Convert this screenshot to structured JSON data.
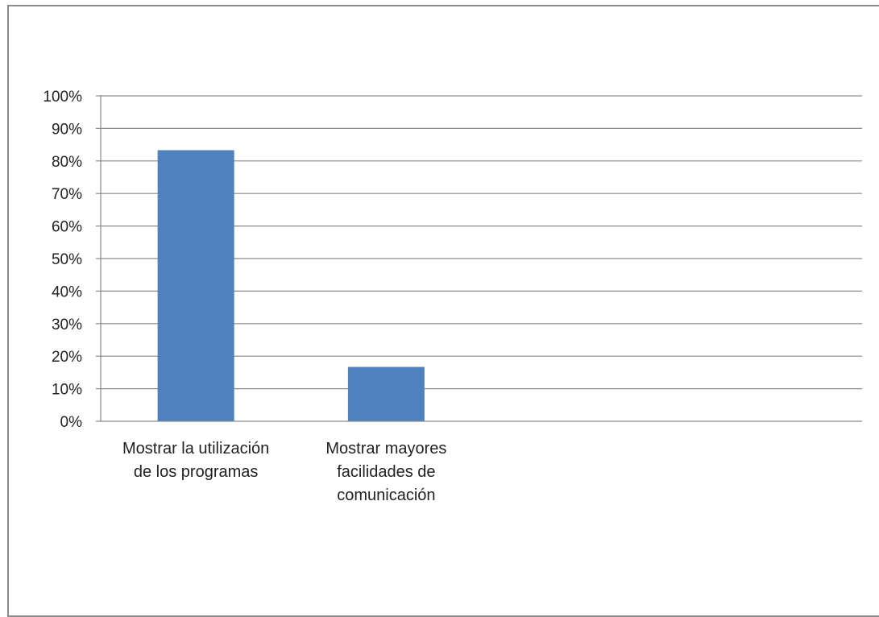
{
  "chart_data": {
    "type": "bar",
    "title": "",
    "xlabel": "",
    "ylabel": "",
    "categories": [
      [
        "Mostrar la utilización",
        "de los programas"
      ],
      [
        "Mostrar mayores",
        "facilidades de",
        "comunicación"
      ]
    ],
    "values": [
      83.3,
      16.7
    ],
    "ylim": [
      0,
      100
    ],
    "yticks": [
      "0%",
      "10%",
      "20%",
      "30%",
      "40%",
      "50%",
      "60%",
      "70%",
      "80%",
      "90%",
      "100%"
    ],
    "grid": true,
    "legend": "none",
    "bar_color": "#4f81bd",
    "grid_color": "#898989"
  }
}
